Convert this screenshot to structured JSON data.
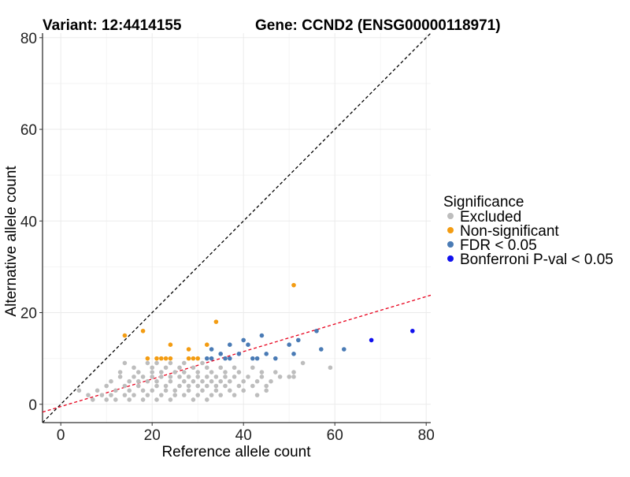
{
  "header": {
    "variant": "Variant: 12:4414155",
    "gene": "Gene: CCND2 (ENSG00000118971)"
  },
  "legend": {
    "title": "Significance",
    "items": [
      {
        "label": "Excluded",
        "color": "#bdbdbd"
      },
      {
        "label": "Non-significant",
        "color": "#f39c12"
      },
      {
        "label": "FDR < 0.05",
        "color": "#4a7bb5"
      },
      {
        "label": "Bonferroni P-val < 0.05",
        "color": "#1010ee"
      }
    ]
  },
  "chart_data": {
    "type": "scatter",
    "xlabel": "Reference allele count",
    "ylabel": "Alternative allele count",
    "xlim": [
      -4,
      81
    ],
    "ylim": [
      -4,
      81
    ],
    "xticks": [
      0,
      20,
      40,
      60,
      80
    ],
    "yticks": [
      0,
      20,
      40,
      60,
      80
    ],
    "grid": true,
    "legend_position": "right",
    "reference_lines": [
      {
        "name": "identity",
        "slope": 1,
        "intercept": 0,
        "style": "dashed",
        "color": "#000000"
      },
      {
        "name": "fit",
        "slope": 0.3,
        "intercept": -0.5,
        "style": "dashed",
        "color": "#e8001c"
      }
    ],
    "series": [
      {
        "name": "Excluded",
        "color": "#bdbdbd",
        "points": [
          [
            4,
            3
          ],
          [
            6,
            2
          ],
          [
            7,
            1
          ],
          [
            8,
            3
          ],
          [
            9,
            2
          ],
          [
            10,
            1
          ],
          [
            10,
            4
          ],
          [
            11,
            2
          ],
          [
            11,
            5
          ],
          [
            12,
            1
          ],
          [
            12,
            3
          ],
          [
            13,
            6
          ],
          [
            13,
            7
          ],
          [
            14,
            2
          ],
          [
            14,
            4
          ],
          [
            14,
            9
          ],
          [
            15,
            1
          ],
          [
            15,
            3
          ],
          [
            15,
            5
          ],
          [
            16,
            2
          ],
          [
            16,
            6
          ],
          [
            16,
            8
          ],
          [
            17,
            4
          ],
          [
            17,
            5
          ],
          [
            17,
            7
          ],
          [
            18,
            1
          ],
          [
            18,
            3
          ],
          [
            18,
            6
          ],
          [
            19,
            2
          ],
          [
            19,
            5
          ],
          [
            19,
            9
          ],
          [
            20,
            3
          ],
          [
            20,
            6
          ],
          [
            20,
            7
          ],
          [
            20,
            8
          ],
          [
            21,
            1
          ],
          [
            21,
            4
          ],
          [
            21,
            5
          ],
          [
            21,
            9
          ],
          [
            22,
            2
          ],
          [
            22,
            6
          ],
          [
            22,
            7
          ],
          [
            23,
            3
          ],
          [
            23,
            4
          ],
          [
            23,
            8
          ],
          [
            24,
            1
          ],
          [
            24,
            5
          ],
          [
            24,
            6
          ],
          [
            24,
            9
          ],
          [
            25,
            2
          ],
          [
            25,
            3
          ],
          [
            25,
            7
          ],
          [
            26,
            4
          ],
          [
            26,
            6
          ],
          [
            26,
            8
          ],
          [
            27,
            2
          ],
          [
            27,
            5
          ],
          [
            27,
            7
          ],
          [
            27,
            9
          ],
          [
            28,
            3
          ],
          [
            28,
            4
          ],
          [
            28,
            6
          ],
          [
            29,
            1
          ],
          [
            29,
            5
          ],
          [
            29,
            8
          ],
          [
            30,
            2
          ],
          [
            30,
            4
          ],
          [
            30,
            6
          ],
          [
            30,
            7
          ],
          [
            31,
            3
          ],
          [
            31,
            5
          ],
          [
            31,
            9
          ],
          [
            32,
            1
          ],
          [
            32,
            4
          ],
          [
            32,
            6
          ],
          [
            32,
            8
          ],
          [
            33,
            2
          ],
          [
            33,
            5
          ],
          [
            33,
            7
          ],
          [
            34,
            3
          ],
          [
            34,
            4
          ],
          [
            34,
            6
          ],
          [
            35,
            2
          ],
          [
            35,
            5
          ],
          [
            35,
            8
          ],
          [
            36,
            4
          ],
          [
            36,
            6
          ],
          [
            36,
            7
          ],
          [
            37,
            3
          ],
          [
            37,
            5
          ],
          [
            38,
            2
          ],
          [
            38,
            6
          ],
          [
            38,
            8
          ],
          [
            39,
            4
          ],
          [
            39,
            7
          ],
          [
            40,
            3
          ],
          [
            40,
            5
          ],
          [
            41,
            6
          ],
          [
            42,
            4
          ],
          [
            42,
            8
          ],
          [
            43,
            2
          ],
          [
            43,
            5
          ],
          [
            44,
            6
          ],
          [
            44,
            7
          ],
          [
            45,
            3
          ],
          [
            45,
            4
          ],
          [
            46,
            5
          ],
          [
            47,
            7
          ],
          [
            48,
            6
          ],
          [
            50,
            6
          ],
          [
            51,
            6
          ],
          [
            51,
            7
          ],
          [
            53,
            9
          ],
          [
            59,
            8
          ]
        ]
      },
      {
        "name": "Non-significant",
        "color": "#f39c12",
        "points": [
          [
            14,
            15
          ],
          [
            18,
            16
          ],
          [
            19,
            10
          ],
          [
            21,
            10
          ],
          [
            22,
            10
          ],
          [
            23,
            10
          ],
          [
            24,
            10
          ],
          [
            24,
            13
          ],
          [
            28,
            12
          ],
          [
            28,
            10
          ],
          [
            29,
            10
          ],
          [
            30,
            10
          ],
          [
            32,
            13
          ],
          [
            34,
            18
          ],
          [
            51,
            26
          ]
        ]
      },
      {
        "name": "FDR < 0.05",
        "color": "#4a7bb5",
        "points": [
          [
            32,
            10
          ],
          [
            33,
            10
          ],
          [
            33,
            12
          ],
          [
            35,
            11
          ],
          [
            36,
            10
          ],
          [
            37,
            10
          ],
          [
            37,
            13
          ],
          [
            39,
            11
          ],
          [
            40,
            14
          ],
          [
            41,
            13
          ],
          [
            42,
            10
          ],
          [
            43,
            10
          ],
          [
            44,
            15
          ],
          [
            45,
            11
          ],
          [
            47,
            10
          ],
          [
            50,
            13
          ],
          [
            51,
            11
          ],
          [
            52,
            14
          ],
          [
            56,
            16
          ],
          [
            57,
            12
          ],
          [
            62,
            12
          ]
        ]
      },
      {
        "name": "Bonferroni P-val < 0.05",
        "color": "#1010ee",
        "points": [
          [
            68,
            14
          ],
          [
            77,
            16
          ]
        ]
      }
    ]
  }
}
